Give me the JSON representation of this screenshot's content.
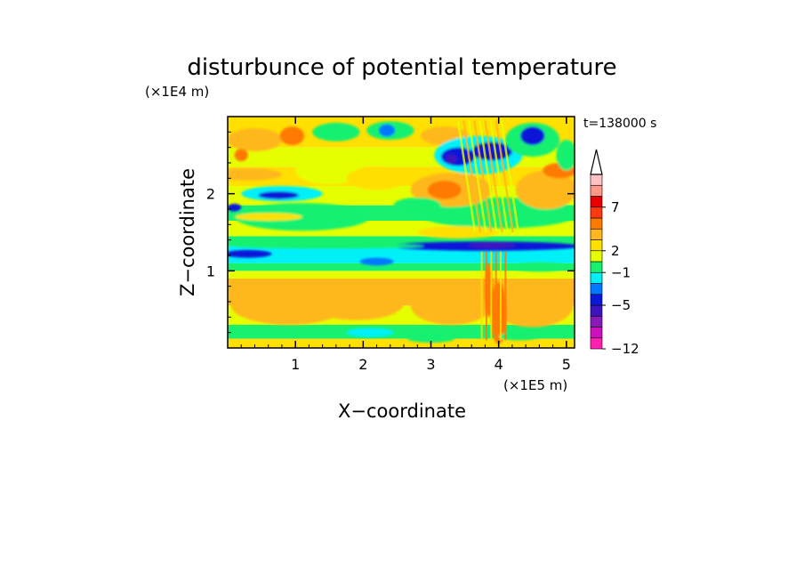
{
  "chart_data": {
    "type": "heatmap",
    "title": "disturbunce of potential temperature",
    "xlabel": "X−coordinate",
    "ylabel": "Z−coordinate",
    "x_scale_label": "(×1E5 m)",
    "y_scale_label": "(×1E4 m)",
    "time_label": "t=138000 s",
    "xlim": [
      0,
      5.12
    ],
    "ylim": [
      0,
      3.0
    ],
    "xticks": [
      {
        "value": 1,
        "label": "1"
      },
      {
        "value": 2,
        "label": "2"
      },
      {
        "value": 3,
        "label": "3"
      },
      {
        "value": 4,
        "label": "4"
      },
      {
        "value": 5,
        "label": "5"
      }
    ],
    "yticks": [
      {
        "value": 1,
        "label": "1"
      },
      {
        "value": 2,
        "label": "2"
      }
    ],
    "colorbar": {
      "levels": [
        -12,
        -5,
        -1,
        2,
        7
      ],
      "labels": [
        "−12",
        "−5",
        "−1",
        "2",
        "7"
      ],
      "colors": [
        "#ff1fb0",
        "#cc10c0",
        "#8a1ab8",
        "#3c14c0",
        "#0a18d8",
        "#0078ff",
        "#00f0f8",
        "#18f070",
        "#e6ff00",
        "#ffe000",
        "#ffb81c",
        "#ff7a00",
        "#ff3a10",
        "#e80000",
        "#ff9a8a",
        "#ffc2c2"
      ],
      "extend": "max"
    },
    "bands": [
      {
        "z": [
          0.0,
          0.12
        ],
        "color": "#ffe000"
      },
      {
        "z": [
          0.12,
          0.3
        ],
        "color": "#18f070"
      },
      {
        "z": [
          0.3,
          0.55
        ],
        "color": "#e6ff00"
      },
      {
        "z": [
          0.55,
          0.9
        ],
        "color": "#ffb81c"
      },
      {
        "z": [
          0.9,
          1.0
        ],
        "color": "#e6ff00"
      },
      {
        "z": [
          1.0,
          1.1
        ],
        "color": "#18f070"
      },
      {
        "z": [
          1.1,
          1.32
        ],
        "color": "#00f0f8"
      },
      {
        "z": [
          1.32,
          1.45
        ],
        "color": "#18f070"
      },
      {
        "z": [
          1.45,
          1.65
        ],
        "color": "#e6ff00"
      },
      {
        "z": [
          1.65,
          1.85
        ],
        "color": "#18f070"
      },
      {
        "z": [
          1.85,
          2.1
        ],
        "color": "#e6ff00"
      },
      {
        "z": [
          2.1,
          2.35
        ],
        "color": "#ffe000"
      },
      {
        "z": [
          2.35,
          2.6
        ],
        "color": "#e6ff00"
      },
      {
        "z": [
          2.6,
          3.0
        ],
        "color": "#ffe000"
      }
    ],
    "blobs": [
      {
        "x": 0.9,
        "z": 0.55,
        "rx": 0.85,
        "rz": 0.25,
        "color": "#ffb81c"
      },
      {
        "x": 1.9,
        "z": 0.58,
        "rx": 0.7,
        "rz": 0.22,
        "color": "#ffb81c"
      },
      {
        "x": 3.3,
        "z": 0.55,
        "rx": 0.6,
        "rz": 0.25,
        "color": "#ffb81c"
      },
      {
        "x": 4.5,
        "z": 0.55,
        "rx": 0.6,
        "rz": 0.28,
        "color": "#ffb81c"
      },
      {
        "x": 4.0,
        "z": 0.45,
        "rx": 0.12,
        "rz": 0.4,
        "color": "#ff7a00"
      },
      {
        "x": 3.85,
        "z": 0.75,
        "rx": 0.06,
        "rz": 0.35,
        "color": "#ff7a00"
      },
      {
        "x": 2.1,
        "z": 0.2,
        "rx": 0.35,
        "rz": 0.06,
        "color": "#00f0f8"
      },
      {
        "x": 3.0,
        "z": 0.12,
        "rx": 0.35,
        "rz": 0.05,
        "color": "#18f070"
      },
      {
        "x": 4.3,
        "z": 0.15,
        "rx": 0.3,
        "rz": 0.05,
        "color": "#18f070"
      },
      {
        "x": 0.3,
        "z": 1.22,
        "rx": 0.35,
        "rz": 0.05,
        "color": "#0a18d8"
      },
      {
        "x": 2.2,
        "z": 1.12,
        "rx": 0.25,
        "rz": 0.05,
        "color": "#0078ff"
      },
      {
        "x": 3.8,
        "z": 1.32,
        "rx": 1.4,
        "rz": 0.06,
        "color": "#0a18d8"
      },
      {
        "x": 3.9,
        "z": 1.33,
        "rx": 0.35,
        "rz": 0.04,
        "color": "#3c14c0"
      },
      {
        "x": 1.5,
        "z": 1.32,
        "rx": 1.4,
        "rz": 0.03,
        "color": "#18f070"
      },
      {
        "x": 4.6,
        "z": 1.05,
        "rx": 0.4,
        "rz": 0.06,
        "color": "#18f070"
      },
      {
        "x": 1.1,
        "z": 1.7,
        "rx": 1.0,
        "rz": 0.18,
        "color": "#18f070"
      },
      {
        "x": 0.6,
        "z": 1.7,
        "rx": 0.5,
        "rz": 0.05,
        "color": "#ffe000"
      },
      {
        "x": 4.0,
        "z": 1.75,
        "rx": 1.2,
        "rz": 0.2,
        "color": "#18f070"
      },
      {
        "x": 3.4,
        "z": 1.5,
        "rx": 0.6,
        "rz": 0.08,
        "color": "#ffe000"
      },
      {
        "x": 0.3,
        "z": 2.25,
        "rx": 0.5,
        "rz": 0.08,
        "color": "#ffb81c"
      },
      {
        "x": 0.8,
        "z": 2.0,
        "rx": 0.6,
        "rz": 0.1,
        "color": "#00f0f8"
      },
      {
        "x": 0.75,
        "z": 1.98,
        "rx": 0.3,
        "rz": 0.05,
        "color": "#0a18d8"
      },
      {
        "x": 0.1,
        "z": 1.82,
        "rx": 0.1,
        "rz": 0.05,
        "color": "#0a18d8"
      },
      {
        "x": 1.5,
        "z": 2.3,
        "rx": 0.5,
        "rz": 0.18,
        "color": "#e6ff00"
      },
      {
        "x": 2.2,
        "z": 2.2,
        "rx": 0.45,
        "rz": 0.15,
        "color": "#ffe000"
      },
      {
        "x": 3.3,
        "z": 2.05,
        "rx": 0.6,
        "rz": 0.22,
        "color": "#ffb81c"
      },
      {
        "x": 3.2,
        "z": 2.05,
        "rx": 0.25,
        "rz": 0.12,
        "color": "#ff7a00"
      },
      {
        "x": 4.7,
        "z": 2.05,
        "rx": 0.45,
        "rz": 0.25,
        "color": "#ffb81c"
      },
      {
        "x": 4.9,
        "z": 2.3,
        "rx": 0.25,
        "rz": 0.1,
        "color": "#ff7a00"
      },
      {
        "x": 2.8,
        "z": 1.85,
        "rx": 0.35,
        "rz": 0.1,
        "color": "#18f070"
      },
      {
        "x": 0.4,
        "z": 2.7,
        "rx": 0.4,
        "rz": 0.15,
        "color": "#ffb81c"
      },
      {
        "x": 0.2,
        "z": 2.5,
        "rx": 0.1,
        "rz": 0.08,
        "color": "#ff7a00"
      },
      {
        "x": 0.95,
        "z": 2.75,
        "rx": 0.18,
        "rz": 0.12,
        "color": "#ff7a00"
      },
      {
        "x": 1.6,
        "z": 2.8,
        "rx": 0.35,
        "rz": 0.12,
        "color": "#18f070"
      },
      {
        "x": 2.4,
        "z": 2.82,
        "rx": 0.35,
        "rz": 0.12,
        "color": "#18f070"
      },
      {
        "x": 2.35,
        "z": 2.82,
        "rx": 0.12,
        "rz": 0.08,
        "color": "#0078ff"
      },
      {
        "x": 3.2,
        "z": 2.75,
        "rx": 0.35,
        "rz": 0.12,
        "color": "#ffb81c"
      },
      {
        "x": 3.7,
        "z": 2.5,
        "rx": 0.65,
        "rz": 0.25,
        "color": "#00f0f8"
      },
      {
        "x": 3.4,
        "z": 2.48,
        "rx": 0.25,
        "rz": 0.12,
        "color": "#0a18d8"
      },
      {
        "x": 3.9,
        "z": 2.55,
        "rx": 0.3,
        "rz": 0.12,
        "color": "#0a18d8"
      },
      {
        "x": 3.3,
        "z": 2.45,
        "rx": 0.08,
        "rz": 0.06,
        "color": "#3c14c0"
      },
      {
        "x": 4.5,
        "z": 2.7,
        "rx": 0.4,
        "rz": 0.22,
        "color": "#18f070"
      },
      {
        "x": 4.5,
        "z": 2.75,
        "rx": 0.18,
        "rz": 0.12,
        "color": "#0a18d8"
      },
      {
        "x": 5.0,
        "z": 2.5,
        "rx": 0.15,
        "rz": 0.2,
        "color": "#18f070"
      }
    ]
  }
}
